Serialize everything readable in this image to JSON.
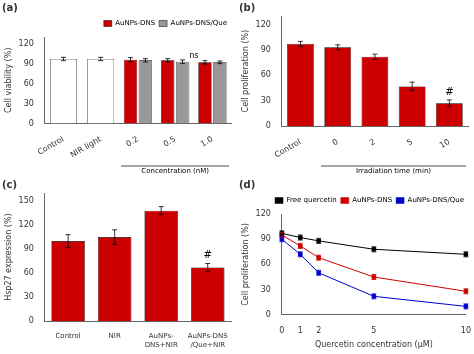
{
  "chart_data": [
    {
      "type": "bar",
      "title": "(a)",
      "categories": [
        "Control",
        "NIR light",
        "0.2",
        "0.5",
        "1.0"
      ],
      "series": [
        {
          "name": "AuNPs-DNS",
          "color": "#cc0000",
          "colors": [
            "#ffffff",
            "#ffffff",
            "#cc0000",
            "#cc0000",
            "#cc0000"
          ],
          "values": [
            97,
            97,
            96,
            95,
            92
          ],
          "errors": [
            2.5,
            2.5,
            3,
            2.5,
            2.5
          ]
        },
        {
          "name": "AuNPs-DNS/Que",
          "color": "#999999",
          "values": [
            null,
            null,
            95,
            93,
            92
          ],
          "errors": [
            null,
            null,
            2.5,
            2.5,
            2
          ]
        }
      ],
      "ylabel": "Cell viability (%)",
      "ylim": [
        0,
        130
      ],
      "yticks": [
        0,
        30,
        60,
        90,
        120
      ],
      "grid": false,
      "legend": "upper right",
      "annotations": [
        {
          "text": "ns",
          "between": [
            "0.5",
            "1.0"
          ],
          "y": 95
        },
        {
          "text": "Concentration (nM)",
          "bracket": [
            "0.2",
            "1.0"
          ]
        }
      ]
    },
    {
      "type": "bar",
      "title": "(b)",
      "categories": [
        "Control",
        "0",
        "2",
        "5",
        "10"
      ],
      "values": [
        97,
        93,
        82,
        47,
        27
      ],
      "errors": [
        3,
        3,
        3,
        5,
        4
      ],
      "color": "#cc0000",
      "ylabel": "Cell proliferation (%)",
      "ylim": [
        0,
        130
      ],
      "yticks": [
        0,
        30,
        60,
        90,
        120
      ],
      "grid": false,
      "annotations": [
        {
          "text": "Irradiation time (min)",
          "bracket": [
            "0",
            "10"
          ]
        },
        {
          "text": "#",
          "x": "10",
          "y": 34
        }
      ]
    },
    {
      "type": "bar",
      "title": "(c)",
      "categories": [
        "Control",
        "NIR",
        "AuNPs-\nDNS+NIR",
        "AuNPs-DNS\n/Que+NIR"
      ],
      "values": [
        100,
        105,
        138,
        67
      ],
      "errors": [
        8,
        9,
        5,
        5
      ],
      "color": "#cc0000",
      "ylabel": "Hsp27 expression (%)",
      "ylim": [
        0,
        160
      ],
      "yticks": [
        0,
        30,
        60,
        90,
        120,
        150
      ],
      "grid": false,
      "annotations": [
        {
          "text": "#",
          "x": "AuNPs-DNS\n/Que+NIR",
          "y": 76
        }
      ]
    },
    {
      "type": "line",
      "title": "(d)",
      "x": [
        0,
        1,
        2,
        5,
        10
      ],
      "series": [
        {
          "name": "Free quercetin",
          "color": "#000000",
          "marker": "square",
          "values": [
            97,
            92,
            88,
            78,
            72
          ],
          "errors": [
            3,
            3,
            3,
            3,
            3
          ]
        },
        {
          "name": "AuNPs-DNS",
          "color": "#cc0000",
          "marker": "square",
          "values": [
            95,
            82,
            68,
            45,
            28
          ],
          "errors": [
            3,
            3,
            3,
            3,
            3
          ]
        },
        {
          "name": "AuNPs-DNS/Que",
          "color": "#0000cc",
          "marker": "square",
          "values": [
            90,
            72,
            50,
            22,
            10
          ],
          "errors": [
            3,
            3,
            3,
            3,
            3
          ]
        }
      ],
      "xlabel": "Quercetin concentration (μM)",
      "ylabel": "Cell proliferation (%)",
      "xlim": [
        0,
        10
      ],
      "xticks": [
        0,
        1,
        2,
        5,
        10
      ],
      "ylim": [
        0,
        120
      ],
      "yticks": [
        0,
        30,
        60,
        90,
        120
      ],
      "grid": false,
      "legend": "upper right"
    }
  ]
}
